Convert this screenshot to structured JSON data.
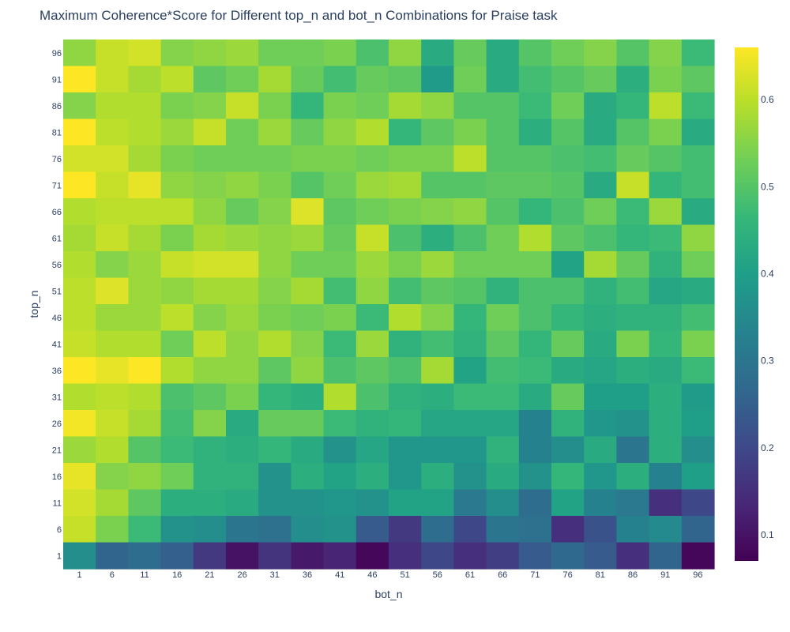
{
  "chart_data": {
    "type": "heatmap",
    "title": "Maximum Coherence*Score for Different top_n and bot_n Combinations for Praise task",
    "xlabel": "bot_n",
    "ylabel": "top_n",
    "x": [
      1,
      6,
      11,
      16,
      21,
      26,
      31,
      36,
      41,
      46,
      51,
      56,
      61,
      66,
      71,
      76,
      81,
      86,
      91,
      96
    ],
    "y": [
      96,
      91,
      86,
      81,
      76,
      71,
      66,
      61,
      56,
      51,
      46,
      41,
      36,
      31,
      26,
      21,
      16,
      11,
      6,
      1
    ],
    "z": [
      [
        0.56,
        0.61,
        0.62,
        0.55,
        0.56,
        0.57,
        0.53,
        0.53,
        0.54,
        0.49,
        0.56,
        0.43,
        0.52,
        0.43,
        0.5,
        0.53,
        0.55,
        0.5,
        0.55,
        0.47
      ],
      [
        0.66,
        0.61,
        0.58,
        0.6,
        0.51,
        0.53,
        0.58,
        0.52,
        0.48,
        0.52,
        0.51,
        0.39,
        0.53,
        0.43,
        0.48,
        0.5,
        0.52,
        0.44,
        0.54,
        0.51
      ],
      [
        0.55,
        0.59,
        0.59,
        0.54,
        0.55,
        0.61,
        0.54,
        0.46,
        0.54,
        0.53,
        0.58,
        0.56,
        0.5,
        0.5,
        0.47,
        0.53,
        0.43,
        0.46,
        0.6,
        0.47
      ],
      [
        0.66,
        0.6,
        0.59,
        0.57,
        0.61,
        0.53,
        0.57,
        0.52,
        0.56,
        0.59,
        0.46,
        0.51,
        0.54,
        0.5,
        0.44,
        0.5,
        0.43,
        0.5,
        0.54,
        0.43
      ],
      [
        0.62,
        0.62,
        0.58,
        0.54,
        0.53,
        0.53,
        0.53,
        0.54,
        0.54,
        0.53,
        0.54,
        0.54,
        0.6,
        0.5,
        0.5,
        0.49,
        0.48,
        0.52,
        0.5,
        0.48
      ],
      [
        0.66,
        0.61,
        0.64,
        0.56,
        0.55,
        0.56,
        0.54,
        0.5,
        0.53,
        0.57,
        0.58,
        0.5,
        0.5,
        0.51,
        0.51,
        0.5,
        0.43,
        0.61,
        0.46,
        0.48
      ],
      [
        0.59,
        0.6,
        0.6,
        0.6,
        0.56,
        0.52,
        0.55,
        0.63,
        0.51,
        0.53,
        0.54,
        0.55,
        0.56,
        0.5,
        0.46,
        0.49,
        0.53,
        0.47,
        0.57,
        0.43
      ],
      [
        0.58,
        0.61,
        0.58,
        0.54,
        0.58,
        0.57,
        0.56,
        0.57,
        0.52,
        0.61,
        0.49,
        0.44,
        0.49,
        0.53,
        0.59,
        0.51,
        0.49,
        0.46,
        0.47,
        0.56
      ],
      [
        0.59,
        0.55,
        0.57,
        0.61,
        0.62,
        0.62,
        0.56,
        0.53,
        0.53,
        0.57,
        0.54,
        0.57,
        0.53,
        0.53,
        0.53,
        0.41,
        0.58,
        0.52,
        0.45,
        0.53
      ],
      [
        0.6,
        0.63,
        0.57,
        0.56,
        0.58,
        0.58,
        0.55,
        0.58,
        0.48,
        0.56,
        0.48,
        0.51,
        0.5,
        0.45,
        0.49,
        0.49,
        0.45,
        0.48,
        0.42,
        0.43
      ],
      [
        0.6,
        0.57,
        0.57,
        0.6,
        0.55,
        0.57,
        0.54,
        0.53,
        0.54,
        0.47,
        0.59,
        0.55,
        0.46,
        0.53,
        0.49,
        0.46,
        0.44,
        0.45,
        0.45,
        0.48
      ],
      [
        0.61,
        0.59,
        0.59,
        0.53,
        0.6,
        0.56,
        0.59,
        0.55,
        0.47,
        0.57,
        0.45,
        0.48,
        0.45,
        0.51,
        0.46,
        0.52,
        0.43,
        0.54,
        0.46,
        0.54
      ],
      [
        0.66,
        0.64,
        0.66,
        0.59,
        0.56,
        0.56,
        0.51,
        0.56,
        0.49,
        0.51,
        0.49,
        0.58,
        0.41,
        0.48,
        0.47,
        0.43,
        0.42,
        0.44,
        0.43,
        0.47
      ],
      [
        0.59,
        0.6,
        0.59,
        0.49,
        0.51,
        0.54,
        0.46,
        0.44,
        0.59,
        0.49,
        0.45,
        0.44,
        0.47,
        0.47,
        0.43,
        0.52,
        0.4,
        0.4,
        0.44,
        0.39
      ],
      [
        0.65,
        0.61,
        0.58,
        0.48,
        0.55,
        0.43,
        0.52,
        0.52,
        0.47,
        0.45,
        0.46,
        0.42,
        0.42,
        0.42,
        0.33,
        0.45,
        0.38,
        0.37,
        0.44,
        0.4
      ],
      [
        0.57,
        0.59,
        0.5,
        0.47,
        0.45,
        0.44,
        0.46,
        0.43,
        0.37,
        0.42,
        0.38,
        0.38,
        0.38,
        0.45,
        0.33,
        0.36,
        0.43,
        0.3,
        0.44,
        0.36
      ],
      [
        0.64,
        0.55,
        0.56,
        0.53,
        0.45,
        0.45,
        0.37,
        0.44,
        0.41,
        0.44,
        0.38,
        0.44,
        0.37,
        0.43,
        0.37,
        0.46,
        0.38,
        0.44,
        0.33,
        0.4
      ],
      [
        0.62,
        0.58,
        0.51,
        0.44,
        0.44,
        0.43,
        0.37,
        0.37,
        0.38,
        0.37,
        0.41,
        0.41,
        0.31,
        0.36,
        0.28,
        0.41,
        0.33,
        0.31,
        0.15,
        0.2
      ],
      [
        0.61,
        0.54,
        0.47,
        0.37,
        0.36,
        0.3,
        0.29,
        0.36,
        0.37,
        0.24,
        0.17,
        0.28,
        0.2,
        0.3,
        0.29,
        0.15,
        0.22,
        0.33,
        0.35,
        0.26
      ],
      [
        0.36,
        0.26,
        0.28,
        0.25,
        0.17,
        0.1,
        0.16,
        0.11,
        0.13,
        0.08,
        0.15,
        0.2,
        0.15,
        0.18,
        0.24,
        0.27,
        0.24,
        0.15,
        0.26,
        0.08
      ]
    ],
    "zmin": 0.07,
    "zmax": 0.66,
    "colorscale": "viridis",
    "colorbar_ticks": [
      0.1,
      0.2,
      0.3,
      0.4,
      0.5,
      0.6
    ],
    "grid": false
  }
}
